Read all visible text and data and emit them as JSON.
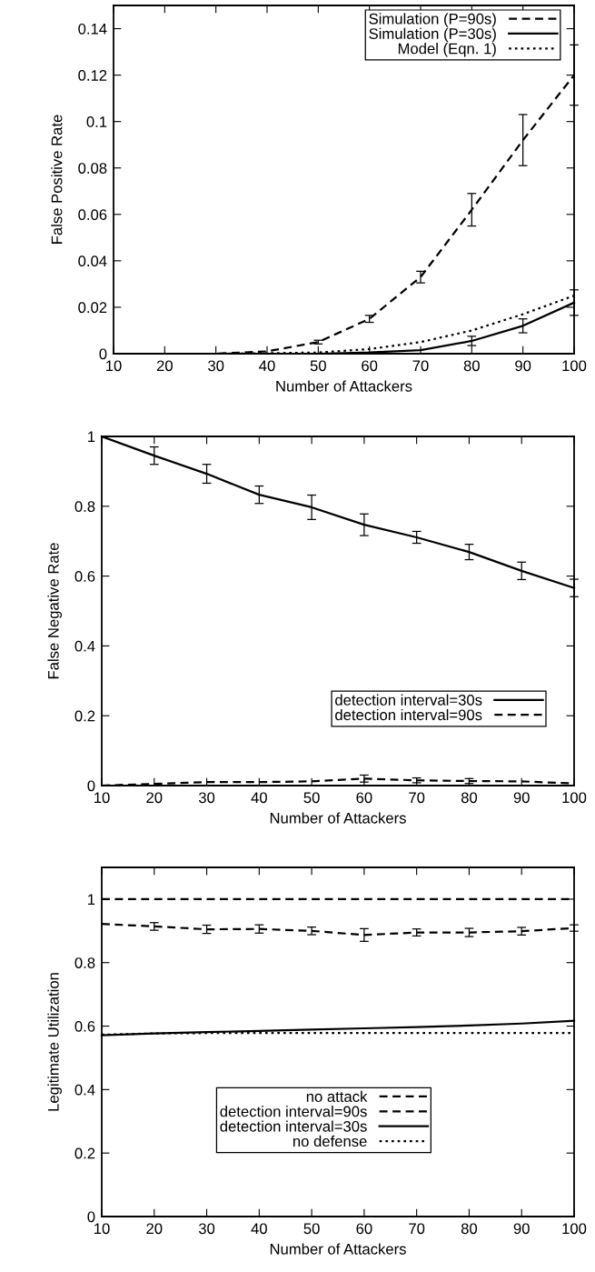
{
  "chart_data": [
    {
      "type": "line",
      "xlabel": "Number of Attackers",
      "ylabel": "False Positive Rate",
      "x": [
        10,
        20,
        30,
        40,
        50,
        60,
        70,
        80,
        90,
        100
      ],
      "xlim": [
        10,
        100
      ],
      "xticks": [
        10,
        20,
        30,
        40,
        50,
        60,
        70,
        80,
        90,
        100
      ],
      "ylim": [
        0,
        0.15
      ],
      "yticks": [
        0,
        0.02,
        0.04,
        0.06,
        0.08,
        0.1,
        0.12,
        0.14
      ],
      "grid": false,
      "legend": "top right",
      "marker": "none",
      "series": [
        {
          "name": "Simulation (P=90s)",
          "color": "#000000",
          "line_style": "dashed",
          "values": [
            0,
            0,
            0,
            0.001,
            0.005,
            0.015,
            0.033,
            0.062,
            0.092,
            0.12
          ],
          "errors": [
            null,
            null,
            null,
            null,
            0.0008,
            0.0015,
            0.0025,
            0.007,
            0.011,
            0.013
          ]
        },
        {
          "name": "Simulation (P=30s)",
          "color": "#000000",
          "line_style": "solid",
          "values": [
            0,
            0,
            0,
            0,
            0,
            0.0005,
            0.0015,
            0.0055,
            0.012,
            0.022
          ],
          "errors": [
            null,
            null,
            null,
            null,
            null,
            null,
            null,
            0.002,
            0.003,
            0.0055
          ]
        },
        {
          "name": "Model (Eqn. 1)",
          "color": "#000000",
          "line_style": "dotted",
          "values": [
            0,
            0,
            0,
            0.0002,
            0.0005,
            0.002,
            0.005,
            0.01,
            0.017,
            0.025
          ]
        }
      ]
    },
    {
      "type": "line",
      "xlabel": "Number of Attackers",
      "ylabel": "False Negative Rate",
      "x": [
        10,
        20,
        30,
        40,
        50,
        60,
        70,
        80,
        90,
        100
      ],
      "xlim": [
        10,
        100
      ],
      "xticks": [
        10,
        20,
        30,
        40,
        50,
        60,
        70,
        80,
        90,
        100
      ],
      "ylim": [
        0,
        1
      ],
      "yticks": [
        0,
        0.2,
        0.4,
        0.6,
        0.8,
        1
      ],
      "grid": false,
      "legend": "center right",
      "marker": "none",
      "series": [
        {
          "name": "detection interval=30s",
          "color": "#000000",
          "line_style": "solid",
          "values": [
            1,
            0.945,
            0.893,
            0.833,
            0.797,
            0.747,
            0.711,
            0.669,
            0.615,
            0.566
          ],
          "errors": [
            null,
            0.025,
            0.027,
            0.025,
            0.035,
            0.031,
            0.017,
            0.022,
            0.025,
            0.025
          ]
        },
        {
          "name": "detection interval=90s",
          "color": "#000000",
          "line_style": "dashed",
          "values": [
            0,
            0.005,
            0.01,
            0.01,
            0.012,
            0.02,
            0.015,
            0.013,
            0.012,
            0.006
          ],
          "errors": [
            null,
            null,
            null,
            null,
            null,
            [
              0.01,
              0.03
            ],
            [
              0.008,
              0.022
            ],
            [
              0.006,
              0.02
            ],
            null,
            null
          ]
        }
      ]
    },
    {
      "type": "line",
      "xlabel": "Number of Attackers",
      "ylabel": "Legitimate Utilization",
      "x": [
        10,
        20,
        30,
        40,
        50,
        60,
        70,
        80,
        90,
        100
      ],
      "xlim": [
        10,
        100
      ],
      "xticks": [
        10,
        20,
        30,
        40,
        50,
        60,
        70,
        80,
        90,
        100
      ],
      "ylim": [
        0,
        1.1
      ],
      "yticks": [
        0,
        0.2,
        0.4,
        0.6,
        0.8,
        1
      ],
      "grid": false,
      "legend": "bottom",
      "marker": "none",
      "series": [
        {
          "name": "no attack",
          "color": "#000000",
          "line_style": "dashed",
          "values": [
            1,
            1,
            1,
            1,
            1,
            1,
            1,
            1,
            1,
            1
          ]
        },
        {
          "name": "detection interval=90s",
          "color": "#000000",
          "line_style": "dashed",
          "values": [
            0.922,
            0.914,
            0.905,
            0.906,
            0.9,
            0.887,
            0.895,
            0.895,
            0.899,
            0.909
          ],
          "errors": [
            null,
            0.012,
            0.013,
            0.013,
            0.012,
            0.02,
            0.011,
            0.013,
            0.012,
            0.01
          ]
        },
        {
          "name": "detection interval=30s",
          "color": "#000000",
          "line_style": "solid",
          "values": [
            0.571,
            0.577,
            0.581,
            0.585,
            0.589,
            0.593,
            0.597,
            0.602,
            0.608,
            0.617
          ]
        },
        {
          "name": "no defense",
          "color": "#000000",
          "line_style": "dotted",
          "values": [
            0.573,
            0.577,
            0.578,
            0.578,
            0.578,
            0.578,
            0.578,
            0.578,
            0.578,
            0.578
          ]
        }
      ]
    }
  ]
}
